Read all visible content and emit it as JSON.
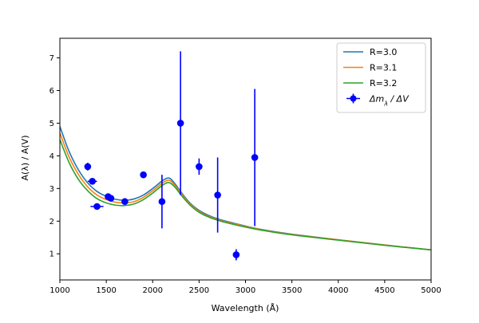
{
  "chart_data": {
    "type": "line",
    "xlabel": "Wavelength (Å)",
    "ylabel": "A(λ) / A(V)",
    "xlim": [
      1000,
      5000
    ],
    "ylim": [
      0.2,
      7.6
    ],
    "xticks": [
      1000,
      1500,
      2000,
      2500,
      3000,
      3500,
      4000,
      4500,
      5000
    ],
    "yticks": [
      1,
      2,
      3,
      4,
      5,
      6,
      7
    ],
    "grid": false,
    "legend_position": "top-right",
    "series": [
      {
        "name": "R=3.0",
        "color": "#1f77b4",
        "x": [
          1000,
          1100,
          1200,
          1300,
          1400,
          1500,
          1600,
          1700,
          1800,
          1900,
          2000,
          2100,
          2150,
          2175,
          2200,
          2250,
          2300,
          2400,
          2500,
          2600,
          2700,
          2800,
          3000,
          3200,
          3500,
          4000,
          4500,
          5000
        ],
        "values": [
          4.9,
          4.13,
          3.57,
          3.17,
          2.91,
          2.76,
          2.67,
          2.64,
          2.68,
          2.8,
          3.0,
          3.23,
          3.31,
          3.32,
          3.28,
          3.11,
          2.91,
          2.56,
          2.33,
          2.18,
          2.07,
          1.99,
          1.85,
          1.73,
          1.6,
          1.43,
          1.27,
          1.12
        ]
      },
      {
        "name": "R=3.1",
        "color": "#ff7f0e",
        "x": [
          1000,
          1100,
          1200,
          1300,
          1400,
          1500,
          1600,
          1700,
          1800,
          1900,
          2000,
          2100,
          2150,
          2175,
          2200,
          2250,
          2300,
          2400,
          2500,
          2600,
          2700,
          2800,
          3000,
          3200,
          3500,
          4000,
          4500,
          5000
        ],
        "values": [
          4.7,
          3.96,
          3.43,
          3.05,
          2.8,
          2.66,
          2.58,
          2.56,
          2.6,
          2.73,
          2.93,
          3.16,
          3.24,
          3.25,
          3.22,
          3.06,
          2.87,
          2.53,
          2.3,
          2.15,
          2.05,
          1.97,
          1.84,
          1.72,
          1.59,
          1.43,
          1.27,
          1.12
        ]
      },
      {
        "name": "R=3.2",
        "color": "#2ca02c",
        "x": [
          1000,
          1100,
          1200,
          1300,
          1400,
          1500,
          1600,
          1700,
          1800,
          1900,
          2000,
          2100,
          2150,
          2175,
          2200,
          2250,
          2300,
          2400,
          2500,
          2600,
          2700,
          2800,
          3000,
          3200,
          3500,
          4000,
          4500,
          5000
        ],
        "values": [
          4.5,
          3.79,
          3.28,
          2.93,
          2.69,
          2.56,
          2.49,
          2.48,
          2.53,
          2.66,
          2.86,
          3.09,
          3.17,
          3.18,
          3.15,
          3.01,
          2.82,
          2.5,
          2.27,
          2.13,
          2.03,
          1.95,
          1.82,
          1.71,
          1.58,
          1.42,
          1.26,
          1.12
        ]
      }
    ],
    "errorbar_series": {
      "name": "Δm_λ / ΔV",
      "color": "#0000ff",
      "points": [
        {
          "x": 1300,
          "y": 3.67,
          "xerr": 30,
          "yerr": 0.12
        },
        {
          "x": 1350,
          "y": 3.22,
          "xerr": 50,
          "yerr": 0.05
        },
        {
          "x": 1400,
          "y": 2.45,
          "xerr": 70,
          "yerr": 0.05
        },
        {
          "x": 1520,
          "y": 2.75,
          "xerr": 20,
          "yerr": 0.1
        },
        {
          "x": 1550,
          "y": 2.7,
          "xerr": 30,
          "yerr": 0.05
        },
        {
          "x": 1700,
          "y": 2.6,
          "xerr": 20,
          "yerr": 0.05
        },
        {
          "x": 1900,
          "y": 3.42,
          "xerr": 20,
          "yerr": 0.05
        },
        {
          "x": 2100,
          "y": 2.6,
          "xerr": 10,
          "yerr": 0.82
        },
        {
          "x": 2300,
          "y": 5.0,
          "xerr": 0,
          "yerr": 2.2
        },
        {
          "x": 2500,
          "y": 3.67,
          "xerr": 20,
          "yerr": 0.25
        },
        {
          "x": 2700,
          "y": 2.8,
          "xerr": 0,
          "yerr": 1.15
        },
        {
          "x": 2900,
          "y": 0.97,
          "xerr": 20,
          "yerr": 0.17
        },
        {
          "x": 3100,
          "y": 3.95,
          "xerr": 0,
          "yerr": 2.1
        }
      ]
    },
    "legend": {
      "entries": [
        {
          "label": "R=3.0",
          "kind": "line",
          "color": "#1f77b4"
        },
        {
          "label": "R=3.1",
          "kind": "line",
          "color": "#ff7f0e"
        },
        {
          "label": "R=3.2",
          "kind": "line",
          "color": "#2ca02c"
        },
        {
          "label": "Δm",
          "sub": "λ",
          "suffix": " / ΔV",
          "kind": "errorbar",
          "color": "#0000ff"
        }
      ]
    }
  }
}
